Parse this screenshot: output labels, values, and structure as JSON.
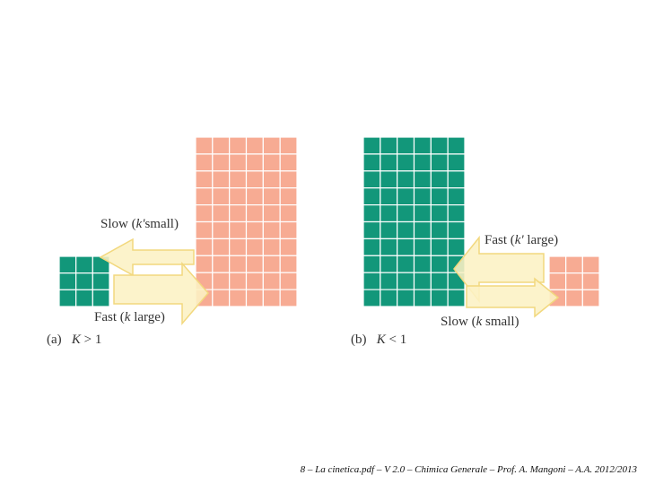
{
  "colors": {
    "reactant": "#12977a",
    "product": "#f7ab93",
    "arrow_fill": "#fcf1c4",
    "arrow_stroke": "#f2d87e",
    "grid_line": "#ffffff"
  },
  "panel_a": {
    "label_prefix": "(a)",
    "condition_var": "K",
    "condition_rest": " > 1",
    "slow": {
      "word": "Slow",
      "open": " (",
      "k": "k'",
      "size": "small",
      "close": ")"
    },
    "fast": {
      "word": "Fast",
      "open": " (",
      "k": "k",
      "size": " large",
      "close": ")"
    },
    "left_grid": {
      "color_role": "reactant",
      "cols": 3,
      "rows": 3
    },
    "right_grid": {
      "color_role": "product",
      "cols": 6,
      "rows": 10
    }
  },
  "panel_b": {
    "label_prefix": "(b)",
    "condition_var": "K",
    "condition_rest": " < 1",
    "fast": {
      "word": "Fast",
      "open": " (",
      "k": "k'",
      "size": " large",
      "close": ")"
    },
    "slow": {
      "word": "Slow",
      "open": " (",
      "k": "k",
      "size": " small",
      "close": ")"
    },
    "left_grid": {
      "color_role": "reactant",
      "cols": 6,
      "rows": 10
    },
    "right_grid": {
      "color_role": "product",
      "cols": 3,
      "rows": 3
    }
  },
  "footer": "8 – La cinetica.pdf – V 2.0 – Chimica Generale – Prof. A. Mangoni – A.A. 2012/2013"
}
